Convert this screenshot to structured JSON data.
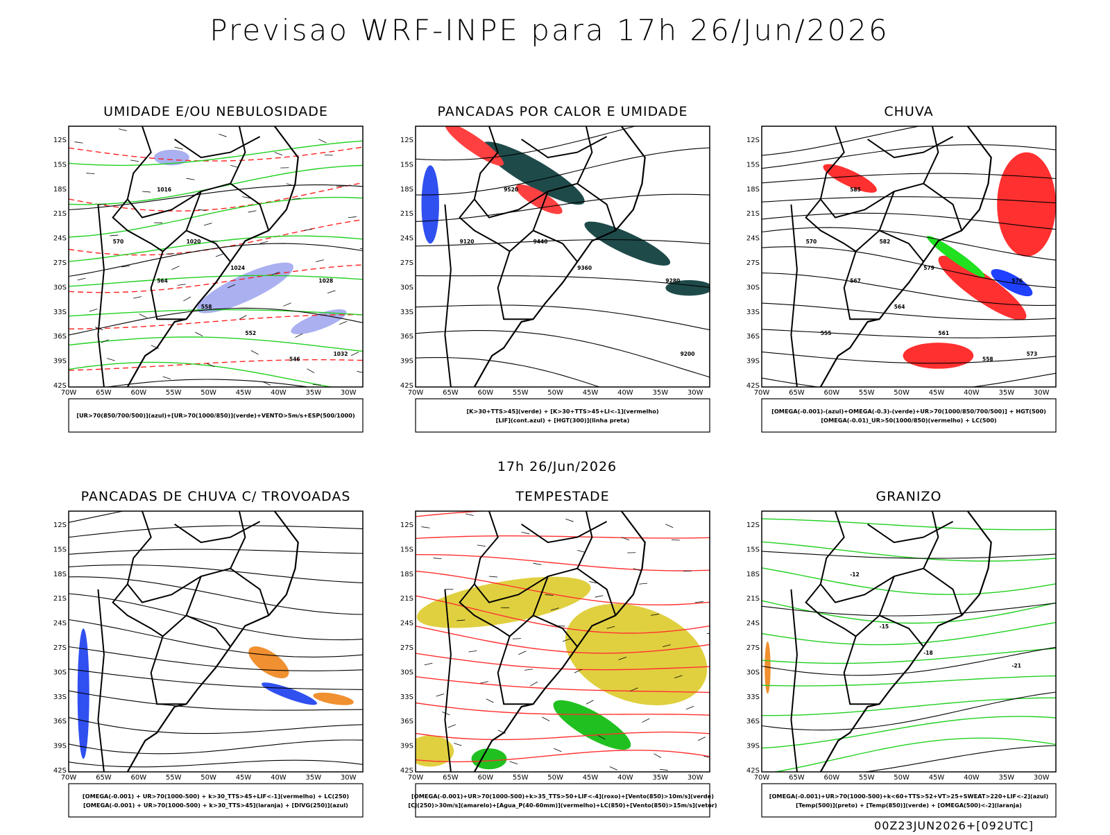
{
  "title": "Previsao WRF-INPE  para 17h 26/Jun/2026",
  "valid_time": "17h 26/Jun/2026",
  "footer": "00Z23JUN2026+[092UTC]",
  "lat_labels": [
    "12S",
    "15S",
    "18S",
    "21S",
    "24S",
    "27S",
    "30S",
    "33S",
    "36S",
    "39S",
    "42S"
  ],
  "lon_labels": [
    "70W",
    "65W",
    "60W",
    "55W",
    "50W",
    "45W",
    "40W",
    "35W",
    "30W"
  ],
  "panels": [
    {
      "title": "UMIDADE E/OU NEBULOSIDADE",
      "legend": [
        "[UR>70(850/700/500)](azul)+[UR>70(1000/850)](verde)+VENTO>5m/s+ESP(500/1000)"
      ],
      "contour_labels": [
        "1016",
        "1020",
        "1024",
        "1028",
        "1032",
        "570",
        "564",
        "558",
        "552",
        "546"
      ]
    },
    {
      "title": "PANCADAS POR CALOR E UMIDADE",
      "legend": [
        "[K>30+TTS>45](verde) + [K>30+TTS>45+LI<-1](vermelho)",
        "[LIF](cont.azul) + [HGT(300)](linha preta)"
      ],
      "contour_labels": [
        "9520",
        "9440",
        "9360",
        "9280",
        "9200",
        "9120"
      ]
    },
    {
      "title": "CHUVA",
      "legend": [
        "[OMEGA(-0.001)-(azul)+OMEGA(-0.3)-(verde)+UR>70(1000/850/700/500)] + HGT(500)",
        "[OMEGA(-0.01)_UR>50(1000/850)(vermelho) + LC(500)"
      ],
      "contour_labels": [
        "585",
        "582",
        "579",
        "576",
        "573",
        "570",
        "567",
        "564",
        "561",
        "558",
        "555"
      ]
    },
    {
      "title": "PANCADAS DE CHUVA C/ TROVOADAS",
      "legend": [
        "[OMEGA(-0.001) + UR>70(1000-500) + k>30_TTS>45+LIF<-1](vermelho) + LC(250)",
        "[OMEGA(-0.001) + UR>70(1000-500) + k>30_TTS>45](laranja) + [DIVG(250)](azul)"
      ],
      "contour_labels": []
    },
    {
      "title": "TEMPESTADE",
      "legend": [
        "[OMEGA(-0.001)+UR>70(1000-500)+k>35_TTS>50+LIF<-4](roxo)+[Vento(850)>10m/s](verde)",
        "[CJ(250)>30m/s](amarelo)+[Agua_P(40-60mm)](vermelho)+LC(850)+[Vento(850)>15m/s](vetor)"
      ],
      "contour_labels": []
    },
    {
      "title": "GRANIZO",
      "legend": [
        "[OMEGA(-0.001)+UR>70(1000-500)+k<60+TTS>52+VT>25+SWEAT>220+LIF<-2](azul)",
        "[Temp(500)](preto) + [Temp(850)](verde) + [OMEGA(500)<-2](laranja)"
      ],
      "contour_labels": [
        "-12",
        "-15",
        "-18",
        "-21"
      ]
    }
  ]
}
